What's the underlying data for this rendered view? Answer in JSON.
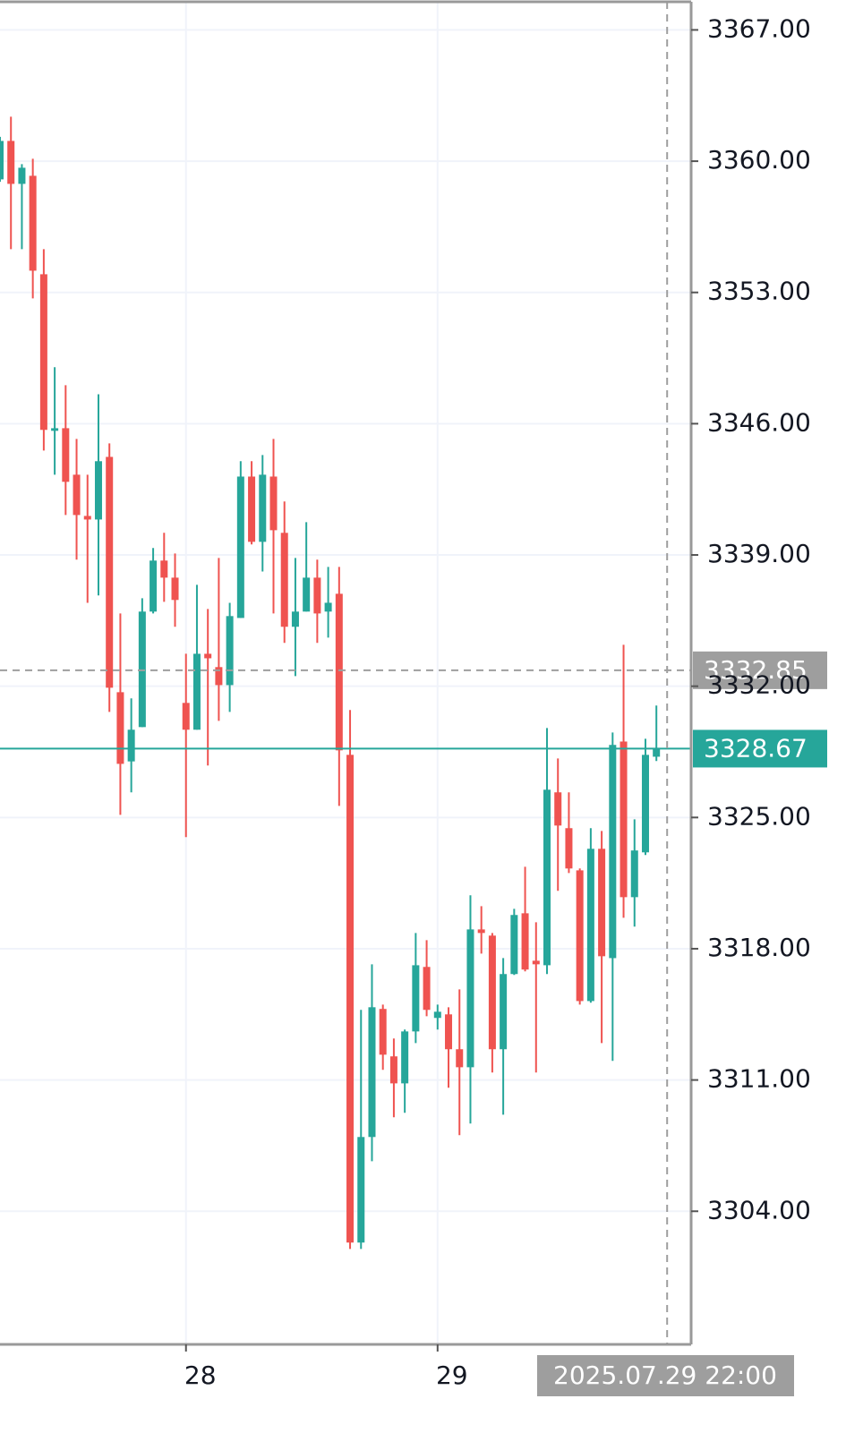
{
  "chart_data": {
    "type": "candlestick",
    "categories": [
      null,
      null,
      null,
      null,
      null,
      null,
      null,
      null,
      null,
      null,
      null,
      null,
      null,
      null,
      null,
      null,
      null,
      "28",
      null,
      null,
      null,
      null,
      null,
      null,
      null,
      null,
      null,
      null,
      null,
      null,
      null,
      null,
      null,
      null,
      null,
      null,
      null,
      null,
      null,
      null,
      "29",
      null,
      null,
      null,
      null,
      null,
      null,
      null,
      null,
      null,
      null,
      null,
      null,
      null,
      null,
      null,
      null,
      null,
      null,
      null,
      null
    ],
    "open": [
      3359.03,
      3361.08,
      3358.79,
      3359.22,
      3353.97,
      3345.62,
      3345.76,
      3343.28,
      3341.08,
      3340.89,
      3344.23,
      3331.68,
      3327.99,
      3329.82,
      3335.98,
      3338.7,
      3337.79,
      3331.11,
      3329.68,
      3333.73,
      3333.02,
      3332.06,
      3335.64,
      3343.18,
      3339.7,
      3343.18,
      3340.18,
      3335.17,
      3335.98,
      3337.79,
      3335.98,
      3336.93,
      3328.34,
      3302.33,
      3307.96,
      3314.79,
      3312.26,
      3310.82,
      3313.59,
      3317.03,
      3314.31,
      3314.5,
      3312.64,
      3311.68,
      3319.03,
      3318.7,
      3312.64,
      3316.65,
      3319.89,
      3317.36,
      3317.12,
      3326.34,
      3324.43,
      3322.18,
      3315.21,
      3323.33,
      3317.5,
      3329.05,
      3320.75,
      3323.14,
      3328.24
    ],
    "high": [
      3361.3,
      3362.37,
      3359.84,
      3360.13,
      3355.31,
      3349.01,
      3348.05,
      3345.19,
      3343.28,
      3347.57,
      3344.95,
      3335.88,
      3331.35,
      3336.69,
      3339.37,
      3340.18,
      3339.08,
      3333.73,
      3337.41,
      3336.12,
      3338.84,
      3336.45,
      3344.0,
      3344.0,
      3344.33,
      3345.19,
      3341.85,
      3338.84,
      3340.75,
      3338.75,
      3338.36,
      3338.36,
      3330.73,
      3314.74,
      3317.17,
      3315.02,
      3313.21,
      3313.69,
      3318.84,
      3318.46,
      3315.02,
      3314.88,
      3315.83,
      3320.85,
      3320.27,
      3318.84,
      3317.5,
      3320.13,
      3322.37,
      3319.41,
      3329.77,
      3328.15,
      3326.34,
      3322.28,
      3324.43,
      3324.28,
      3329.53,
      3334.21,
      3324.9,
      3329.2,
      3330.97
    ],
    "low": [
      3358.9,
      3355.31,
      3355.31,
      3352.68,
      3344.57,
      3343.28,
      3341.13,
      3338.75,
      3336.45,
      3336.84,
      3330.63,
      3325.14,
      3326.34,
      3329.82,
      3335.88,
      3336.5,
      3335.17,
      3323.95,
      3329.68,
      3327.77,
      3330.15,
      3330.63,
      3335.64,
      3339.56,
      3338.12,
      3335.88,
      3334.31,
      3332.54,
      3335.98,
      3334.31,
      3334.59,
      3325.62,
      3301.99,
      3301.99,
      3306.67,
      3311.54,
      3309.01,
      3309.25,
      3312.97,
      3314.4,
      3313.69,
      3310.59,
      3308.06,
      3308.68,
      3317.74,
      3311.4,
      3309.15,
      3316.6,
      3316.79,
      3311.4,
      3316.65,
      3321.09,
      3322.04,
      3315.02,
      3315.12,
      3312.97,
      3312.02,
      3319.65,
      3319.18,
      3323.0,
      3328.01
    ],
    "close": [
      3361.08,
      3358.79,
      3359.65,
      3354.16,
      3345.67,
      3345.76,
      3342.9,
      3341.13,
      3340.89,
      3344.0,
      3331.92,
      3327.86,
      3329.68,
      3335.98,
      3338.7,
      3337.79,
      3336.6,
      3329.68,
      3333.73,
      3333.49,
      3332.06,
      3335.74,
      3343.18,
      3339.7,
      3343.28,
      3340.32,
      3335.17,
      3335.98,
      3337.79,
      3335.88,
      3336.45,
      3328.58,
      3302.33,
      3307.96,
      3314.88,
      3312.35,
      3310.82,
      3313.59,
      3317.12,
      3314.74,
      3314.64,
      3312.64,
      3311.68,
      3319.03,
      3318.84,
      3312.64,
      3316.65,
      3319.8,
      3316.89,
      3317.17,
      3326.48,
      3324.57,
      3322.28,
      3315.21,
      3323.33,
      3317.6,
      3328.87,
      3320.75,
      3323.24,
      3328.34,
      3328.67
    ],
    "up_color": "#26a69a",
    "down_color": "#ef5350",
    "ylim": [
      3296.9,
      3368.5
    ],
    "yticks": [
      {
        "value": 3304,
        "label": "3304.00"
      },
      {
        "value": 3311,
        "label": "3311.00"
      },
      {
        "value": 3318,
        "label": "3318.00"
      },
      {
        "value": 3325,
        "label": "3325.00"
      },
      {
        "value": 3332,
        "label": "3332.00"
      },
      {
        "value": 3339,
        "label": "3339.00"
      },
      {
        "value": 3346,
        "label": "3346.00"
      },
      {
        "value": 3353,
        "label": "3353.00"
      },
      {
        "value": 3360,
        "label": "3360.00"
      },
      {
        "value": 3367,
        "label": "3367.00"
      }
    ],
    "grid": true,
    "crosshair_price": 3332.85,
    "last_price": 3328.67,
    "crosshair_time": "2025.07.29 22:00"
  }
}
